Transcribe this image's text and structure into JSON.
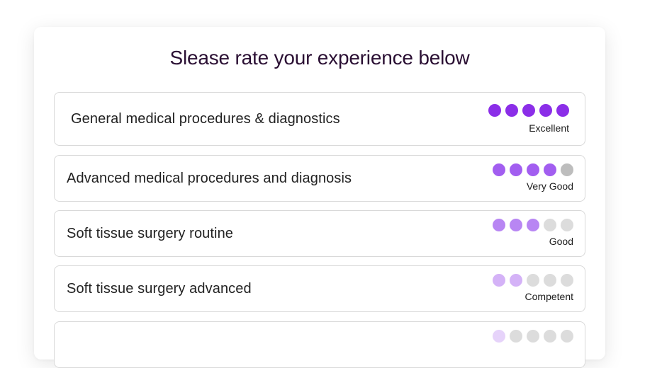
{
  "title": "Slease rate your experience below",
  "colors": {
    "title": "#2a0f33",
    "dot_empty": "#dcdcdc",
    "dot_empty_dark": "#bdbdbd"
  },
  "rows": [
    {
      "label": "General medical procedures & diagnostics",
      "rating": 5,
      "max": 5,
      "rating_text": "Excellent",
      "dot_color": "#8b2ee8"
    },
    {
      "label": "Advanced medical procedures and diagnosis",
      "rating": 4,
      "max": 5,
      "rating_text": "Very Good",
      "dot_color": "#a25ef0"
    },
    {
      "label": "Soft tissue surgery routine",
      "rating": 3,
      "max": 5,
      "rating_text": "Good",
      "dot_color": "#b886f3"
    },
    {
      "label": "Soft tissue surgery advanced",
      "rating": 2,
      "max": 5,
      "rating_text": "Competent",
      "dot_color": "#d4b2f7"
    },
    {
      "label": "",
      "rating": 1,
      "max": 5,
      "rating_text": "",
      "dot_color": "#e6d3fa"
    }
  ]
}
